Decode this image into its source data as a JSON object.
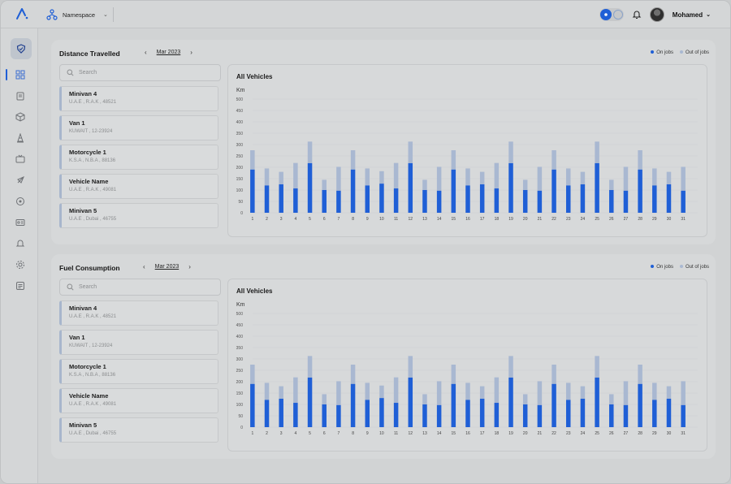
{
  "header": {
    "namespace_label": "Namespace",
    "user_name": "Mohamed"
  },
  "sidebar": {
    "items": [
      {
        "icon": "shield-icon",
        "active": true
      },
      {
        "icon": "dashboard-icon"
      },
      {
        "icon": "clipboard-icon"
      },
      {
        "icon": "box-icon"
      },
      {
        "icon": "traffic-cone-icon"
      },
      {
        "icon": "tv-icon"
      },
      {
        "icon": "rocket-icon"
      },
      {
        "icon": "map-pin-icon"
      },
      {
        "icon": "id-card-icon"
      },
      {
        "icon": "bell-icon"
      },
      {
        "icon": "gear-icon"
      },
      {
        "icon": "document-icon"
      }
    ]
  },
  "panels": [
    {
      "title": "Distance Travelled",
      "month": "Mar 2023",
      "search_placeholder": "Search",
      "legend": [
        "On jobs",
        "Out of jobs"
      ],
      "vehicles": [
        {
          "name": "Minivan 4",
          "detail": "U.A.E , R.A.K , 48521"
        },
        {
          "name": "Van 1",
          "detail": "KUWAIT , 12-23924"
        },
        {
          "name": "Motorcycle 1",
          "detail": "K.S.A , N.B.A , 88136"
        },
        {
          "name": "Vehicle Name",
          "detail": "U.A.E , R.A.K , 49081"
        },
        {
          "name": "Minivan 5",
          "detail": "U.A.E , Dubai , 46755"
        }
      ],
      "chart_title": "All Vehicles",
      "chart_unit": "Km"
    },
    {
      "title": "Fuel Consumption",
      "month": "Mar 2023",
      "search_placeholder": "Search",
      "legend": [
        "On jobs",
        "Out of jobs"
      ],
      "vehicles": [
        {
          "name": "Minivan 4",
          "detail": "U.A.E , R.A.K , 48521"
        },
        {
          "name": "Van 1",
          "detail": "KUWAIT , 12-23924"
        },
        {
          "name": "Motorcycle 1",
          "detail": "K.S.A , N.B.A , 88136"
        },
        {
          "name": "Vehicle Name",
          "detail": "U.A.E , R.A.K , 49081"
        },
        {
          "name": "Minivan 5",
          "detail": "U.A.E , Dubai , 46755"
        }
      ],
      "chart_title": "All Vehicles",
      "chart_unit": "Km"
    }
  ],
  "colors": {
    "on_jobs": "#1f5fd6",
    "out_of_jobs": "#a9b8d1",
    "accent": "#1f5fd6"
  },
  "chart_data": [
    {
      "type": "bar",
      "stacked": true,
      "title": "All Vehicles",
      "ylabel": "Km",
      "ylim": [
        0,
        500
      ],
      "yticks": [
        0,
        50,
        100,
        150,
        200,
        250,
        300,
        350,
        400,
        450,
        500
      ],
      "categories": [
        "1",
        "2",
        "3",
        "4",
        "5",
        "6",
        "7",
        "8",
        "9",
        "10",
        "11",
        "12",
        "13",
        "14",
        "15",
        "16",
        "17",
        "18",
        "19",
        "20",
        "21",
        "22",
        "23",
        "24",
        "25",
        "26",
        "27",
        "28",
        "29",
        "30",
        "31"
      ],
      "series": [
        {
          "name": "On jobs",
          "values": [
            190,
            120,
            125,
            107,
            218,
            100,
            97,
            190,
            120,
            128,
            107,
            218,
            100,
            97,
            190,
            120,
            125,
            107,
            218,
            100,
            97,
            190,
            120,
            125,
            218,
            100,
            97,
            190,
            120,
            125,
            97
          ]
        },
        {
          "name": "Out of jobs",
          "values": [
            85,
            75,
            55,
            112,
            95,
            45,
            105,
            85,
            75,
            55,
            112,
            95,
            45,
            105,
            85,
            75,
            55,
            112,
            95,
            45,
            105,
            85,
            75,
            55,
            95,
            45,
            105,
            85,
            75,
            55,
            105
          ]
        }
      ],
      "grid": true,
      "legend": "top-right"
    },
    {
      "type": "bar",
      "stacked": true,
      "title": "All Vehicles",
      "ylabel": "Km",
      "ylim": [
        0,
        500
      ],
      "yticks": [
        0,
        50,
        100,
        150,
        200,
        250,
        300,
        350,
        400,
        450,
        500
      ],
      "categories": [
        "1",
        "2",
        "3",
        "4",
        "5",
        "6",
        "7",
        "8",
        "9",
        "10",
        "11",
        "12",
        "13",
        "14",
        "15",
        "16",
        "17",
        "18",
        "19",
        "20",
        "21",
        "22",
        "23",
        "24",
        "25",
        "26",
        "27",
        "28",
        "29",
        "30",
        "31"
      ],
      "series": [
        {
          "name": "On jobs",
          "values": [
            190,
            120,
            125,
            107,
            218,
            100,
            97,
            190,
            120,
            128,
            107,
            218,
            100,
            97,
            190,
            120,
            125,
            107,
            218,
            100,
            97,
            190,
            120,
            125,
            218,
            100,
            97,
            190,
            120,
            125,
            97
          ]
        },
        {
          "name": "Out of jobs",
          "values": [
            85,
            75,
            55,
            112,
            95,
            45,
            105,
            85,
            75,
            55,
            112,
            95,
            45,
            105,
            85,
            75,
            55,
            112,
            95,
            45,
            105,
            85,
            75,
            55,
            95,
            45,
            105,
            85,
            75,
            55,
            105
          ]
        }
      ],
      "grid": true,
      "legend": "top-right"
    }
  ]
}
